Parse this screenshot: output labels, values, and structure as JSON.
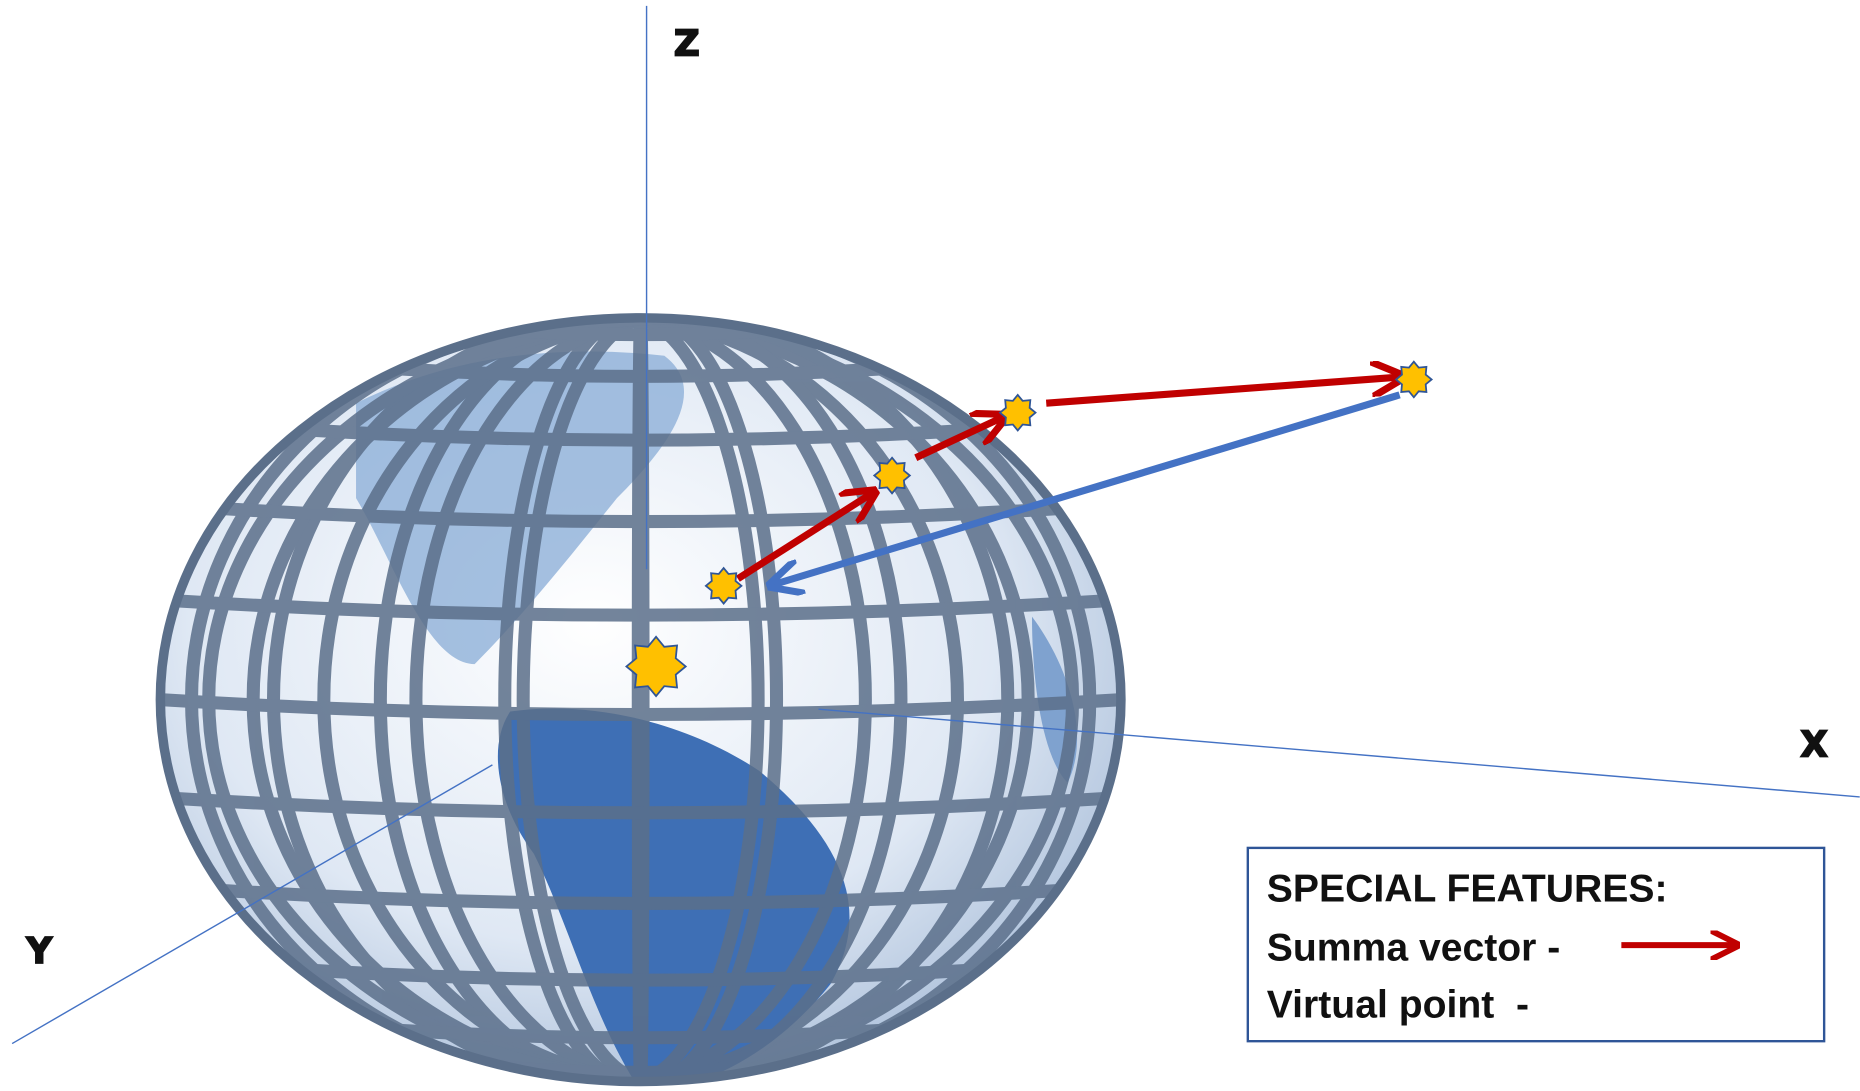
{
  "axes": {
    "z": "Z",
    "x": "X",
    "y": "Y"
  },
  "legend": {
    "title": "SPECIAL FEATURES:",
    "items": [
      "Summa vector -",
      "Virtual point  -"
    ]
  }
}
